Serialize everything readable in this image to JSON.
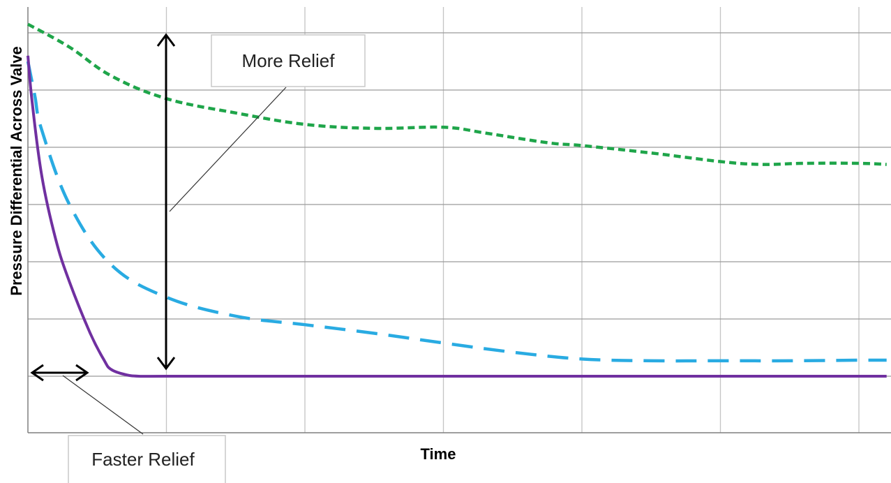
{
  "chart_data": {
    "type": "line",
    "title": "",
    "xlabel": "Time",
    "ylabel": "Pressure Differential Across Valve",
    "xlim": [
      0,
      6.2
    ],
    "ylim": [
      -1,
      6
    ],
    "grid": true,
    "x_gridlines": [
      1,
      2,
      3,
      4,
      5,
      6
    ],
    "y_gridlines": [
      0,
      1,
      2,
      3,
      4,
      5,
      6
    ],
    "series": [
      {
        "style": "dotted-dash",
        "color": "#1fa54a",
        "x": [
          0,
          0.3,
          0.6,
          1.0,
          1.5,
          2.0,
          2.5,
          3.0,
          3.3,
          3.75,
          4.0,
          4.5,
          5.0,
          5.3,
          5.6,
          6.0,
          6.2
        ],
        "y": [
          6.15,
          5.75,
          5.25,
          4.85,
          4.6,
          4.4,
          4.33,
          4.35,
          4.25,
          4.08,
          4.03,
          3.9,
          3.75,
          3.7,
          3.72,
          3.72,
          3.7
        ]
      },
      {
        "style": "long-dash",
        "color": "#29abe2",
        "x": [
          0,
          0.05,
          0.1,
          0.3,
          0.6,
          1.0,
          1.5,
          2.0,
          2.5,
          3.0,
          3.5,
          4.0,
          4.5,
          5.0,
          5.5,
          6.0,
          6.2
        ],
        "y": [
          5.5,
          4.9,
          4.3,
          3.0,
          1.95,
          1.38,
          1.05,
          0.9,
          0.75,
          0.58,
          0.42,
          0.3,
          0.27,
          0.27,
          0.27,
          0.28,
          0.28
        ]
      },
      {
        "style": "solid",
        "color": "#7030a0",
        "x": [
          0,
          0.03,
          0.1,
          0.2,
          0.3,
          0.45,
          0.55,
          0.6,
          0.7,
          0.8,
          1.0,
          1.5,
          2.0,
          3.0,
          4.0,
          5.0,
          6.0,
          6.2
        ],
        "y": [
          5.6,
          4.8,
          3.5,
          2.4,
          1.65,
          0.75,
          0.28,
          0.12,
          0.03,
          0.0,
          0.0,
          0.0,
          0.0,
          0.0,
          0.0,
          0.0,
          0.0,
          0.0
        ]
      }
    ],
    "annotations": [
      {
        "text": "More Relief",
        "arrow": "vertical double-headed",
        "x": 1.0,
        "y_range": [
          0.1,
          6.0
        ]
      },
      {
        "text": "Faster Relief",
        "arrow": "horizontal double-headed",
        "y": 0.0,
        "x_range": [
          0.03,
          0.43
        ]
      }
    ]
  }
}
